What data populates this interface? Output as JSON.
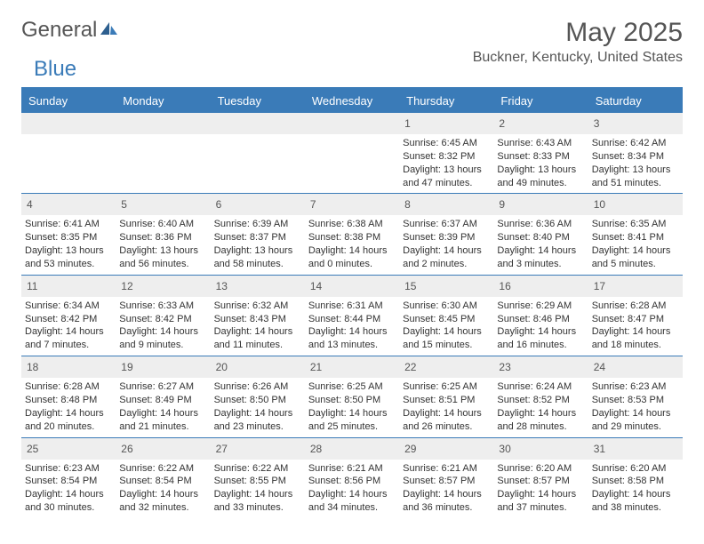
{
  "brand": {
    "part1": "General",
    "part2": "Blue",
    "color_gray": "#555555",
    "color_blue": "#3a7bb8"
  },
  "title": "May 2025",
  "location": "Buckner, Kentucky, United States",
  "day_headers": [
    "Sunday",
    "Monday",
    "Tuesday",
    "Wednesday",
    "Thursday",
    "Friday",
    "Saturday"
  ],
  "colors": {
    "header_bg": "#3a7bb8",
    "row_divider": "#3a7bb8",
    "daynum_bg": "#eeeeee",
    "text": "#333333"
  },
  "weeks": [
    [
      {
        "n": "",
        "sunrise": "",
        "sunset": "",
        "daylight": ""
      },
      {
        "n": "",
        "sunrise": "",
        "sunset": "",
        "daylight": ""
      },
      {
        "n": "",
        "sunrise": "",
        "sunset": "",
        "daylight": ""
      },
      {
        "n": "",
        "sunrise": "",
        "sunset": "",
        "daylight": ""
      },
      {
        "n": "1",
        "sunrise": "Sunrise: 6:45 AM",
        "sunset": "Sunset: 8:32 PM",
        "daylight": "Daylight: 13 hours and 47 minutes."
      },
      {
        "n": "2",
        "sunrise": "Sunrise: 6:43 AM",
        "sunset": "Sunset: 8:33 PM",
        "daylight": "Daylight: 13 hours and 49 minutes."
      },
      {
        "n": "3",
        "sunrise": "Sunrise: 6:42 AM",
        "sunset": "Sunset: 8:34 PM",
        "daylight": "Daylight: 13 hours and 51 minutes."
      }
    ],
    [
      {
        "n": "4",
        "sunrise": "Sunrise: 6:41 AM",
        "sunset": "Sunset: 8:35 PM",
        "daylight": "Daylight: 13 hours and 53 minutes."
      },
      {
        "n": "5",
        "sunrise": "Sunrise: 6:40 AM",
        "sunset": "Sunset: 8:36 PM",
        "daylight": "Daylight: 13 hours and 56 minutes."
      },
      {
        "n": "6",
        "sunrise": "Sunrise: 6:39 AM",
        "sunset": "Sunset: 8:37 PM",
        "daylight": "Daylight: 13 hours and 58 minutes."
      },
      {
        "n": "7",
        "sunrise": "Sunrise: 6:38 AM",
        "sunset": "Sunset: 8:38 PM",
        "daylight": "Daylight: 14 hours and 0 minutes."
      },
      {
        "n": "8",
        "sunrise": "Sunrise: 6:37 AM",
        "sunset": "Sunset: 8:39 PM",
        "daylight": "Daylight: 14 hours and 2 minutes."
      },
      {
        "n": "9",
        "sunrise": "Sunrise: 6:36 AM",
        "sunset": "Sunset: 8:40 PM",
        "daylight": "Daylight: 14 hours and 3 minutes."
      },
      {
        "n": "10",
        "sunrise": "Sunrise: 6:35 AM",
        "sunset": "Sunset: 8:41 PM",
        "daylight": "Daylight: 14 hours and 5 minutes."
      }
    ],
    [
      {
        "n": "11",
        "sunrise": "Sunrise: 6:34 AM",
        "sunset": "Sunset: 8:42 PM",
        "daylight": "Daylight: 14 hours and 7 minutes."
      },
      {
        "n": "12",
        "sunrise": "Sunrise: 6:33 AM",
        "sunset": "Sunset: 8:42 PM",
        "daylight": "Daylight: 14 hours and 9 minutes."
      },
      {
        "n": "13",
        "sunrise": "Sunrise: 6:32 AM",
        "sunset": "Sunset: 8:43 PM",
        "daylight": "Daylight: 14 hours and 11 minutes."
      },
      {
        "n": "14",
        "sunrise": "Sunrise: 6:31 AM",
        "sunset": "Sunset: 8:44 PM",
        "daylight": "Daylight: 14 hours and 13 minutes."
      },
      {
        "n": "15",
        "sunrise": "Sunrise: 6:30 AM",
        "sunset": "Sunset: 8:45 PM",
        "daylight": "Daylight: 14 hours and 15 minutes."
      },
      {
        "n": "16",
        "sunrise": "Sunrise: 6:29 AM",
        "sunset": "Sunset: 8:46 PM",
        "daylight": "Daylight: 14 hours and 16 minutes."
      },
      {
        "n": "17",
        "sunrise": "Sunrise: 6:28 AM",
        "sunset": "Sunset: 8:47 PM",
        "daylight": "Daylight: 14 hours and 18 minutes."
      }
    ],
    [
      {
        "n": "18",
        "sunrise": "Sunrise: 6:28 AM",
        "sunset": "Sunset: 8:48 PM",
        "daylight": "Daylight: 14 hours and 20 minutes."
      },
      {
        "n": "19",
        "sunrise": "Sunrise: 6:27 AM",
        "sunset": "Sunset: 8:49 PM",
        "daylight": "Daylight: 14 hours and 21 minutes."
      },
      {
        "n": "20",
        "sunrise": "Sunrise: 6:26 AM",
        "sunset": "Sunset: 8:50 PM",
        "daylight": "Daylight: 14 hours and 23 minutes."
      },
      {
        "n": "21",
        "sunrise": "Sunrise: 6:25 AM",
        "sunset": "Sunset: 8:50 PM",
        "daylight": "Daylight: 14 hours and 25 minutes."
      },
      {
        "n": "22",
        "sunrise": "Sunrise: 6:25 AM",
        "sunset": "Sunset: 8:51 PM",
        "daylight": "Daylight: 14 hours and 26 minutes."
      },
      {
        "n": "23",
        "sunrise": "Sunrise: 6:24 AM",
        "sunset": "Sunset: 8:52 PM",
        "daylight": "Daylight: 14 hours and 28 minutes."
      },
      {
        "n": "24",
        "sunrise": "Sunrise: 6:23 AM",
        "sunset": "Sunset: 8:53 PM",
        "daylight": "Daylight: 14 hours and 29 minutes."
      }
    ],
    [
      {
        "n": "25",
        "sunrise": "Sunrise: 6:23 AM",
        "sunset": "Sunset: 8:54 PM",
        "daylight": "Daylight: 14 hours and 30 minutes."
      },
      {
        "n": "26",
        "sunrise": "Sunrise: 6:22 AM",
        "sunset": "Sunset: 8:54 PM",
        "daylight": "Daylight: 14 hours and 32 minutes."
      },
      {
        "n": "27",
        "sunrise": "Sunrise: 6:22 AM",
        "sunset": "Sunset: 8:55 PM",
        "daylight": "Daylight: 14 hours and 33 minutes."
      },
      {
        "n": "28",
        "sunrise": "Sunrise: 6:21 AM",
        "sunset": "Sunset: 8:56 PM",
        "daylight": "Daylight: 14 hours and 34 minutes."
      },
      {
        "n": "29",
        "sunrise": "Sunrise: 6:21 AM",
        "sunset": "Sunset: 8:57 PM",
        "daylight": "Daylight: 14 hours and 36 minutes."
      },
      {
        "n": "30",
        "sunrise": "Sunrise: 6:20 AM",
        "sunset": "Sunset: 8:57 PM",
        "daylight": "Daylight: 14 hours and 37 minutes."
      },
      {
        "n": "31",
        "sunrise": "Sunrise: 6:20 AM",
        "sunset": "Sunset: 8:58 PM",
        "daylight": "Daylight: 14 hours and 38 minutes."
      }
    ]
  ]
}
